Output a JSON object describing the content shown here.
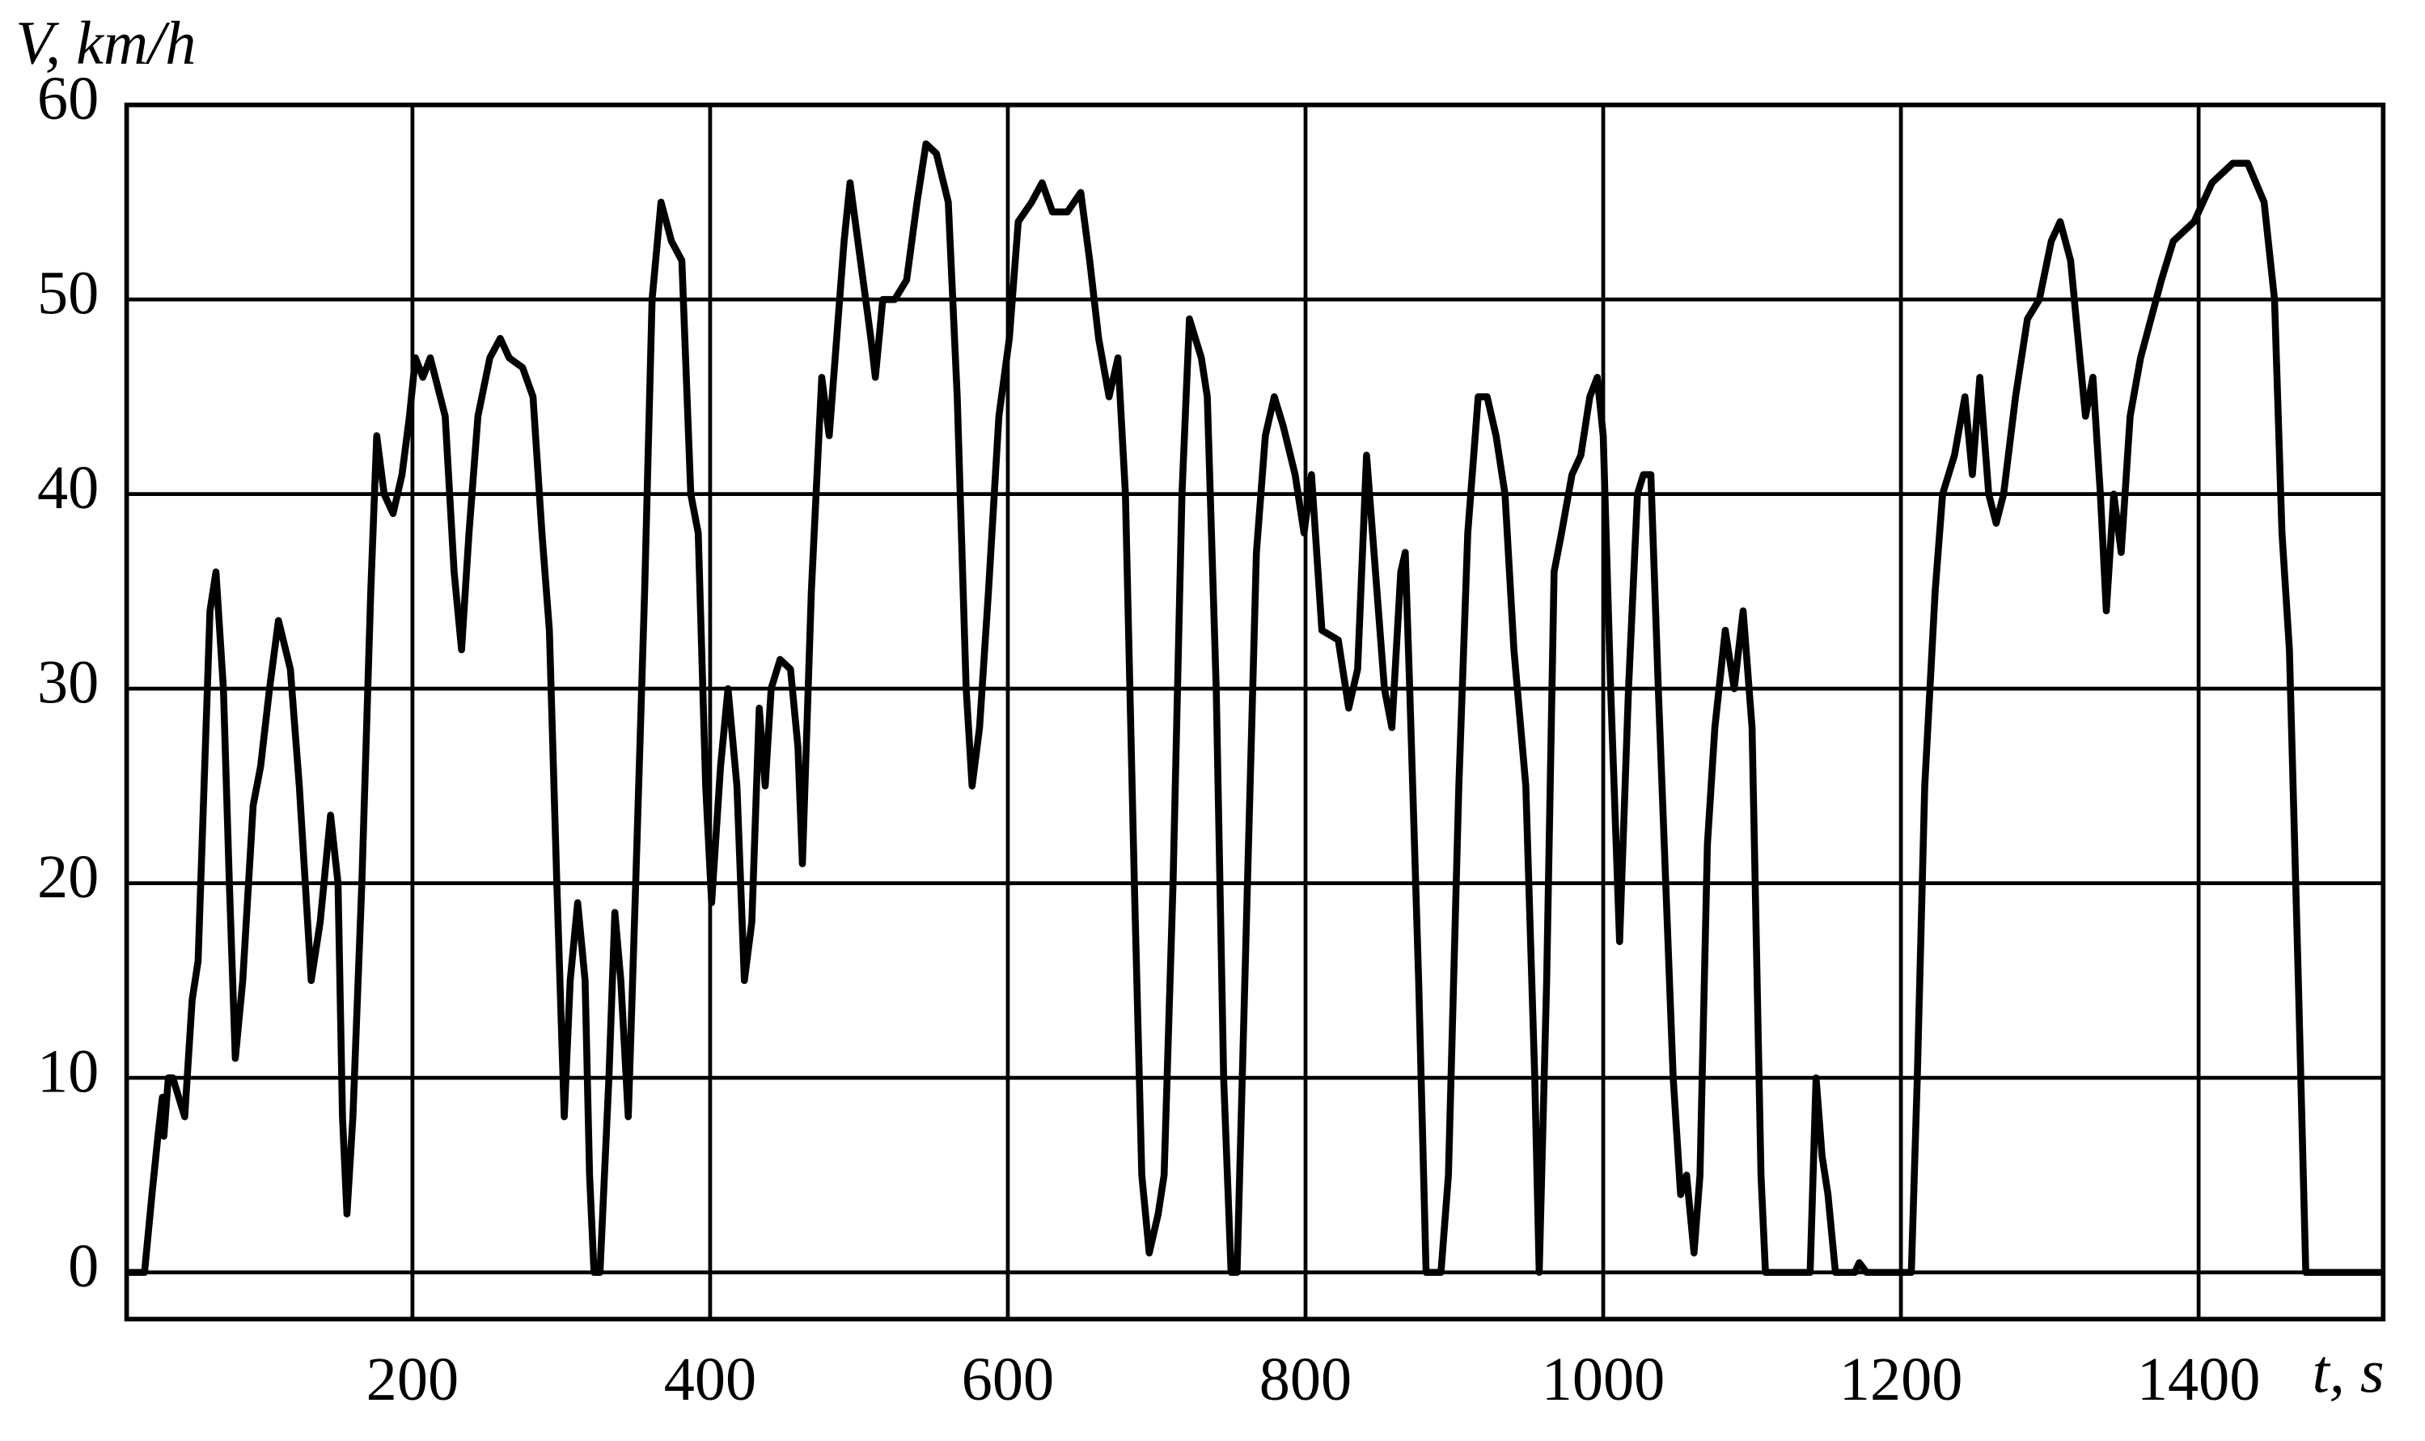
{
  "chart_data": {
    "type": "line",
    "y_label": "V, km/h",
    "x_label": "t, s",
    "xlim": [
      8,
      1524
    ],
    "ylim": [
      -2.4,
      60
    ],
    "xticks": [
      200,
      400,
      600,
      800,
      1000,
      1200,
      1400
    ],
    "yticks": [
      0,
      10,
      20,
      30,
      40,
      50,
      60
    ],
    "grid": true,
    "x": [
      8,
      20,
      25,
      29,
      32,
      33,
      36,
      39,
      47,
      52,
      56,
      60,
      64,
      68,
      73,
      77,
      81,
      86,
      93,
      98,
      104,
      110,
      118,
      124,
      132,
      138,
      145,
      150,
      153,
      156,
      160,
      166,
      172,
      176,
      181,
      187,
      193,
      198,
      202,
      207,
      212,
      222,
      228,
      233,
      238,
      244,
      252,
      259,
      265,
      274,
      281,
      287,
      292,
      297,
      302,
      306,
      311,
      316,
      319,
      322,
      326,
      332,
      336,
      340,
      345,
      350,
      356,
      361,
      367,
      374,
      381,
      387,
      392,
      397,
      401,
      407,
      412,
      418,
      423,
      428,
      433,
      437,
      441,
      447,
      454,
      459,
      462,
      468,
      475,
      480,
      485,
      490,
      494,
      501,
      508,
      511,
      516,
      524,
      532,
      539,
      545,
      552,
      560,
      566,
      572,
      576,
      581,
      587,
      594,
      601,
      607,
      616,
      623,
      630,
      640,
      649,
      655,
      661,
      668,
      674,
      679,
      685,
      690,
      695,
      701,
      705,
      711,
      717,
      722,
      730,
      734,
      740,
      745,
      750,
      754,
      761,
      767,
      773,
      779,
      785,
      793,
      799,
      804,
      811,
      822,
      829,
      835,
      841,
      848,
      853,
      858,
      864,
      867,
      870,
      876,
      881,
      891,
      896,
      903,
      909,
      916,
      922,
      928,
      934,
      940,
      948,
      954,
      957,
      962,
      967,
      972,
      979,
      985,
      991,
      996,
      1000,
      1005,
      1011,
      1017,
      1023,
      1027,
      1032,
      1037,
      1042,
      1047,
      1052,
      1056,
      1061,
      1065,
      1070,
      1075,
      1082,
      1088,
      1094,
      1100,
      1106,
      1109,
      1137,
      1139,
      1143,
      1147,
      1151,
      1156,
      1169,
      1172,
      1177,
      1207,
      1211,
      1216,
      1223,
      1228,
      1236,
      1243,
      1248,
      1253,
      1259,
      1264,
      1269,
      1277,
      1285,
      1293,
      1301,
      1307,
      1314,
      1319,
      1324,
      1329,
      1334,
      1338,
      1343,
      1348,
      1354,
      1361,
      1368,
      1375,
      1383,
      1397,
      1409,
      1423,
      1433,
      1444,
      1451,
      1456,
      1461,
      1467,
      1472,
      1524
    ],
    "series": [
      {
        "name": "V",
        "color": "#000000",
        "values": [
          0,
          0,
          4,
          7,
          9,
          7,
          10,
          10,
          8,
          14,
          16,
          25,
          34,
          36,
          30,
          20,
          11,
          15,
          24,
          26,
          30,
          33.5,
          31,
          25,
          15,
          18,
          23.5,
          20,
          8,
          3,
          8,
          20,
          35,
          43,
          40,
          39,
          41,
          44,
          47,
          46,
          47,
          44,
          36,
          32,
          38,
          44,
          47,
          48,
          47,
          46.5,
          45,
          38,
          33,
          20,
          8,
          15,
          19,
          15,
          5,
          0,
          0,
          10,
          18.5,
          15,
          8,
          20,
          35,
          50,
          55,
          53,
          52,
          40,
          38,
          25,
          19,
          26,
          30,
          25,
          15,
          18,
          29,
          25,
          30,
          31.5,
          31,
          27,
          21,
          35,
          46,
          43,
          48,
          53,
          56,
          52,
          48,
          46,
          50,
          50,
          51,
          55,
          58,
          57.5,
          55,
          45,
          30,
          25,
          28,
          35,
          44,
          48,
          54,
          55,
          56,
          54.5,
          54.5,
          55.5,
          52,
          48,
          45,
          47,
          40,
          20,
          5,
          1,
          3,
          5,
          20,
          40,
          49,
          47,
          45,
          30,
          10,
          0,
          0,
          20,
          37,
          43,
          45,
          43.5,
          41,
          38,
          41,
          33,
          32.5,
          29,
          31,
          42,
          35,
          30,
          28,
          36,
          37,
          30,
          15,
          0,
          0,
          5,
          25,
          38,
          45,
          45,
          43,
          40,
          32,
          25,
          10,
          0,
          15,
          36,
          38,
          41,
          42,
          45,
          46,
          43,
          30,
          17,
          30,
          40,
          41,
          41,
          30,
          20,
          10,
          4,
          5,
          1,
          5,
          22,
          28,
          33,
          30,
          34,
          28,
          5,
          0,
          0,
          0,
          10,
          6,
          4,
          0,
          0,
          0.5,
          0,
          0,
          10,
          25,
          35,
          40,
          42,
          45,
          41,
          46,
          40,
          38.5,
          40,
          45,
          49,
          50,
          53,
          54,
          52,
          48,
          44,
          46,
          40,
          34,
          40,
          37,
          44,
          47,
          49,
          51,
          53,
          54,
          56,
          57,
          57,
          55,
          50,
          38,
          32,
          15,
          0,
          0
        ]
      }
    ]
  }
}
